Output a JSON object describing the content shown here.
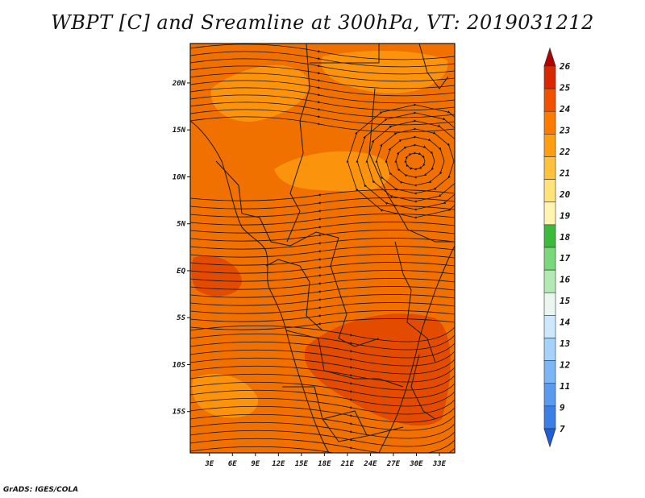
{
  "title": "WBPT [C] and Sreamline at 300hPa, VT: 2019031212",
  "credit": "GrADS: IGES/COLA",
  "lat_labels": [
    "20N",
    "15N",
    "10N",
    "5N",
    "EQ",
    "5S",
    "10S",
    "15S"
  ],
  "lat_values": [
    20,
    15,
    10,
    5,
    0,
    -5,
    -10,
    -15
  ],
  "lon_labels": [
    "3E",
    "6E",
    "9E",
    "12E",
    "15E",
    "18E",
    "21E",
    "24E",
    "27E",
    "30E",
    "33E"
  ],
  "lon_values": [
    3,
    6,
    9,
    12,
    15,
    18,
    21,
    24,
    27,
    30,
    33
  ],
  "colorbar": {
    "labels": [
      "7",
      "9",
      "11",
      "12",
      "13",
      "14",
      "15",
      "16",
      "17",
      "18",
      "19",
      "20",
      "21",
      "22",
      "23",
      "24",
      "25",
      "26"
    ],
    "colors": [
      "#1e5fd8",
      "#3a7fe6",
      "#5a9bf0",
      "#7db6f6",
      "#a6d1fa",
      "#cde8fc",
      "#e9f7f0",
      "#b4e8b4",
      "#79d879",
      "#3cba3c",
      "#fff4b0",
      "#ffe27a",
      "#ffc23d",
      "#ff9e12",
      "#ff7a00",
      "#f25200",
      "#d92800",
      "#b50000"
    ]
  },
  "fields": {
    "base_color": "#f07000",
    "yellow_patch_color": "#ffa010",
    "red_patch_color": "#e04400"
  }
}
